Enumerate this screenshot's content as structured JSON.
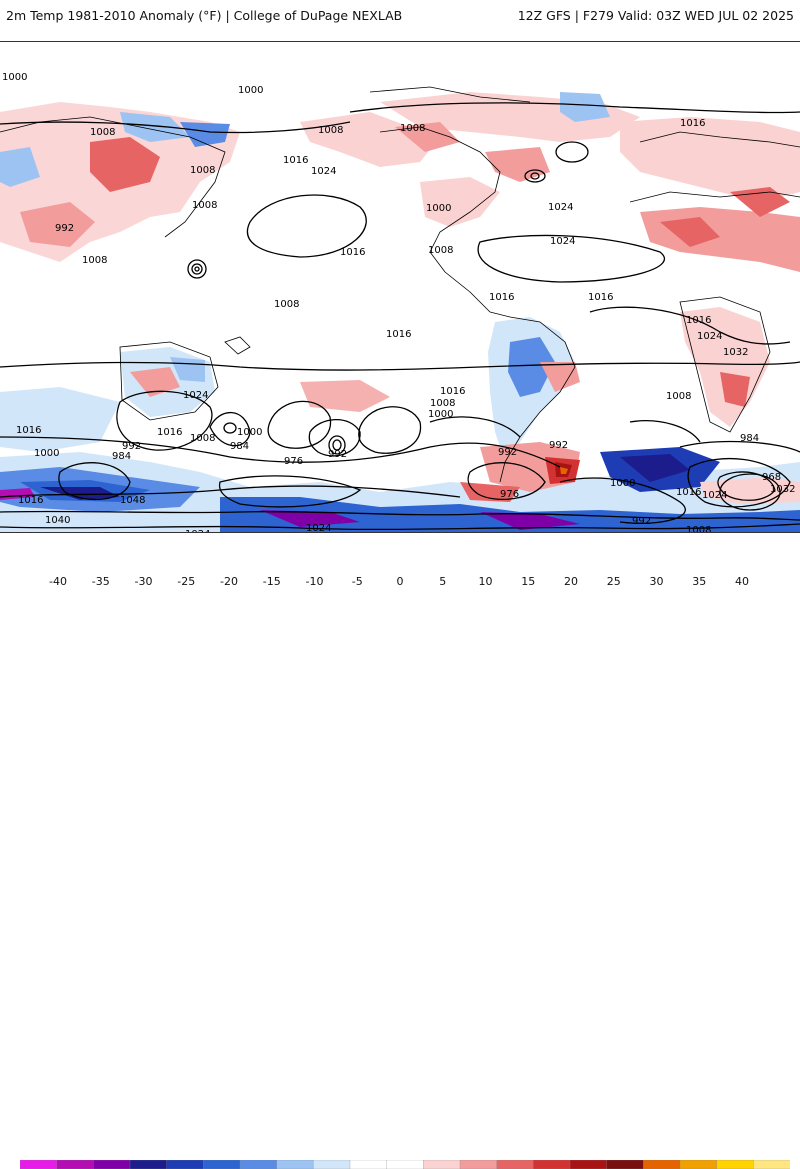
{
  "header": {
    "title_left": "2m Temp 1981-2010 Anomaly (°F) | College of DuPage NEXLAB",
    "title_right": "12Z GFS | F279 Valid: 03Z WED JUL 02 2025"
  },
  "colors": {
    "ocean": "#ffffff",
    "coast": "#000000",
    "contour": "#000000"
  },
  "contour_labels": [
    "1000",
    "1000",
    "1008",
    "1008",
    "1008",
    "1008",
    "1016",
    "1016",
    "1016",
    "1024",
    "1008",
    "1000",
    "992",
    "1008",
    "1008",
    "1008",
    "1024",
    "1016",
    "1024",
    "1016",
    "1016",
    "1024",
    "1032",
    "992",
    "1008",
    "1016",
    "1000",
    "1008",
    "1016",
    "1024",
    "1008",
    "1016",
    "984",
    "976",
    "992",
    "1016",
    "992",
    "984",
    "1000",
    "1000",
    "1016",
    "1040",
    "1048",
    "1024",
    "1024",
    "992",
    "976",
    "968",
    "1016",
    "1024",
    "1032",
    "1000",
    "992",
    "984",
    "1008"
  ],
  "colorbar": {
    "ticks": [
      "-40",
      "-35",
      "-30",
      "-25",
      "-20",
      "-15",
      "-10",
      "-5",
      "0",
      "5",
      "10",
      "15",
      "20",
      "25",
      "30",
      "35",
      "40"
    ],
    "colors": [
      "#e81ce8",
      "#b30db3",
      "#8000a8",
      "#1c1c8c",
      "#1e3cb4",
      "#2e64d2",
      "#5a8ce6",
      "#9cc3f2",
      "#d2e6fa",
      "#ffffff",
      "#ffffff",
      "#fad2d2",
      "#f29c9c",
      "#e66464",
      "#d23232",
      "#a81414",
      "#781010",
      "#e66400",
      "#f0a000",
      "#ffd200",
      "#ffe680"
    ]
  }
}
